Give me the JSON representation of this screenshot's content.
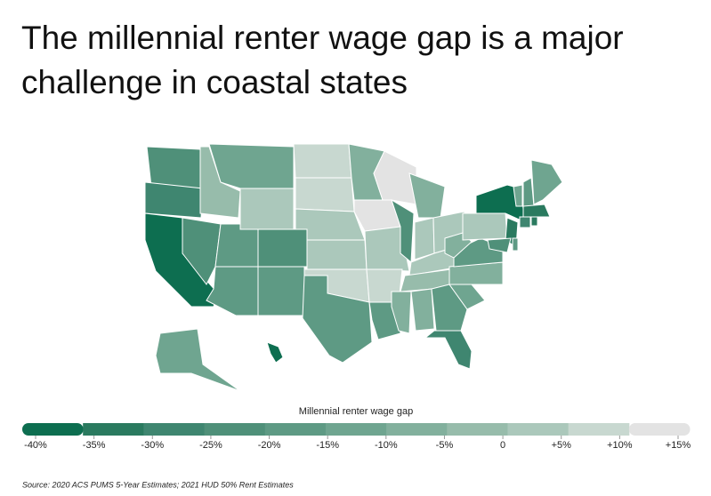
{
  "chart_data": {
    "type": "map",
    "title": "The millennial renter wage gap is a major challenge in coastal states",
    "legend_title": "Millennial renter wage gap",
    "values": [
      -25,
      -28,
      -38,
      -22,
      -5,
      -12,
      0,
      -18,
      -25,
      -20,
      -18,
      8,
      8,
      3,
      2,
      5,
      -20,
      -8,
      12,
      3,
      8,
      -17,
      10,
      -22,
      -10,
      1,
      3,
      2,
      -4,
      -10,
      -8,
      -20,
      -30,
      -15,
      -10,
      -20,
      -8,
      0,
      -36,
      -33,
      -24,
      -18,
      -15,
      -16,
      -14,
      -32,
      -30,
      -32,
      -12,
      -38
    ],
    "xlim": [
      -40,
      15
    ],
    "xticks": [
      {
        "value": -40,
        "label": "-40%"
      },
      {
        "value": -35,
        "label": "-35%"
      },
      {
        "value": -30,
        "label": "-30%"
      },
      {
        "value": -25,
        "label": "-25%"
      },
      {
        "value": -20,
        "label": "-20%"
      },
      {
        "value": -15,
        "label": "-15%"
      },
      {
        "value": -10,
        "label": "-10%"
      },
      {
        "value": -5,
        "label": "-5%"
      },
      0,
      {
        "value": 5,
        "label": "+5%"
      },
      {
        "value": 10,
        "label": "+10%"
      },
      {
        "value": 15,
        "label": "+15%"
      }
    ],
    "colors": [
      "#0d6e50",
      "#2a7a5f",
      "#3f8670",
      "#4f9079",
      "#5e9a84",
      "#6fa590",
      "#82b09d",
      "#97bcab",
      "#abc8bb",
      "#c8d8d0",
      "#e3e3e3"
    ],
    "source": "Source: 2020 ACS PUMS 5-Year Estimates; 2021 HUD 50% Rent Estimates"
  }
}
